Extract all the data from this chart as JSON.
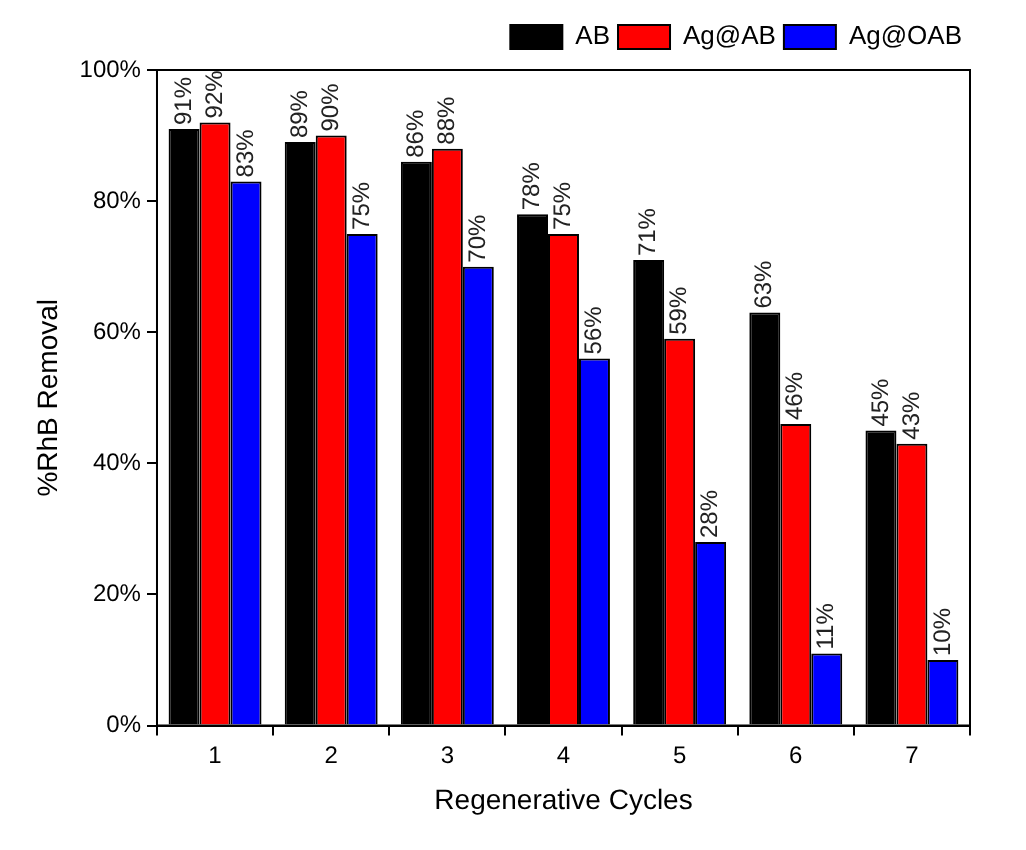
{
  "chart_data": {
    "type": "bar",
    "xlabel": "Regenerative Cycles",
    "ylabel": "%RhB Removal",
    "categories": [
      "1",
      "2",
      "3",
      "4",
      "5",
      "6",
      "7"
    ],
    "series": [
      {
        "name": "AB",
        "color": "#000000",
        "values": [
          91,
          89,
          86,
          78,
          71,
          63,
          45
        ],
        "value_labels": [
          "91%",
          "89%",
          "86%",
          "78%",
          "71%",
          "63%",
          "45%"
        ]
      },
      {
        "name": "Ag@AB",
        "color": "#ff0000",
        "values": [
          92,
          90,
          88,
          75,
          59,
          46,
          43
        ],
        "value_labels": [
          "92%",
          "90%",
          "88%",
          "75%",
          "59%",
          "46%",
          "43%"
        ]
      },
      {
        "name": "Ag@OAB",
        "color": "#0000ff",
        "values": [
          83,
          75,
          70,
          56,
          28,
          11,
          10
        ],
        "value_labels": [
          "83%",
          "75%",
          "70%",
          "56%",
          "28%",
          "11%",
          "10%"
        ]
      }
    ],
    "ylim": [
      0,
      100
    ],
    "yticks": [
      {
        "value": 0,
        "label": "0%"
      },
      {
        "value": 20,
        "label": "20%"
      },
      {
        "value": 40,
        "label": "40%"
      },
      {
        "value": 60,
        "label": "60%"
      },
      {
        "value": 80,
        "label": "80%"
      },
      {
        "value": 100,
        "label": "100%"
      }
    ],
    "grid": false,
    "legend": "top right"
  }
}
